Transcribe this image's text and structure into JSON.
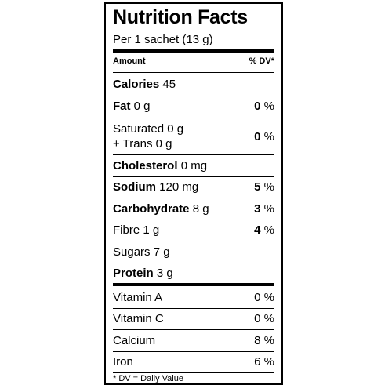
{
  "title": "Nutrition Facts",
  "serving": "Per 1 sachet (13 g)",
  "header": {
    "amount": "Amount",
    "dv": "% DV*"
  },
  "calories": {
    "label": "Calories",
    "value": "45"
  },
  "fat": {
    "label": "Fat",
    "value": "0 g",
    "dv_num": "0",
    "dv_pct": " %"
  },
  "saturated": {
    "line1": "Saturated 0 g",
    "line2": "+ Trans 0 g",
    "dv_num": "0",
    "dv_pct": " %"
  },
  "cholesterol": {
    "label": "Cholesterol",
    "value": "0 mg"
  },
  "sodium": {
    "label": "Sodium",
    "value": "120 mg",
    "dv_num": "5",
    "dv_pct": " %"
  },
  "carbohydrate": {
    "label": "Carbohydrate",
    "value": "8 g",
    "dv_num": "3",
    "dv_pct": " %"
  },
  "fibre": {
    "label": "Fibre 1 g",
    "dv_num": "4",
    "dv_pct": " %"
  },
  "sugars": {
    "label": "Sugars 7 g"
  },
  "protein": {
    "label": "Protein",
    "value": "3 g"
  },
  "vitamin_a": {
    "label": "Vitamin A",
    "dv": "0 %"
  },
  "vitamin_c": {
    "label": "Vitamin C",
    "dv": "0 %"
  },
  "calcium": {
    "label": "Calcium",
    "dv": "8 %"
  },
  "iron": {
    "label": "Iron",
    "dv": "6 %"
  },
  "footnote": "* DV = Daily Value"
}
